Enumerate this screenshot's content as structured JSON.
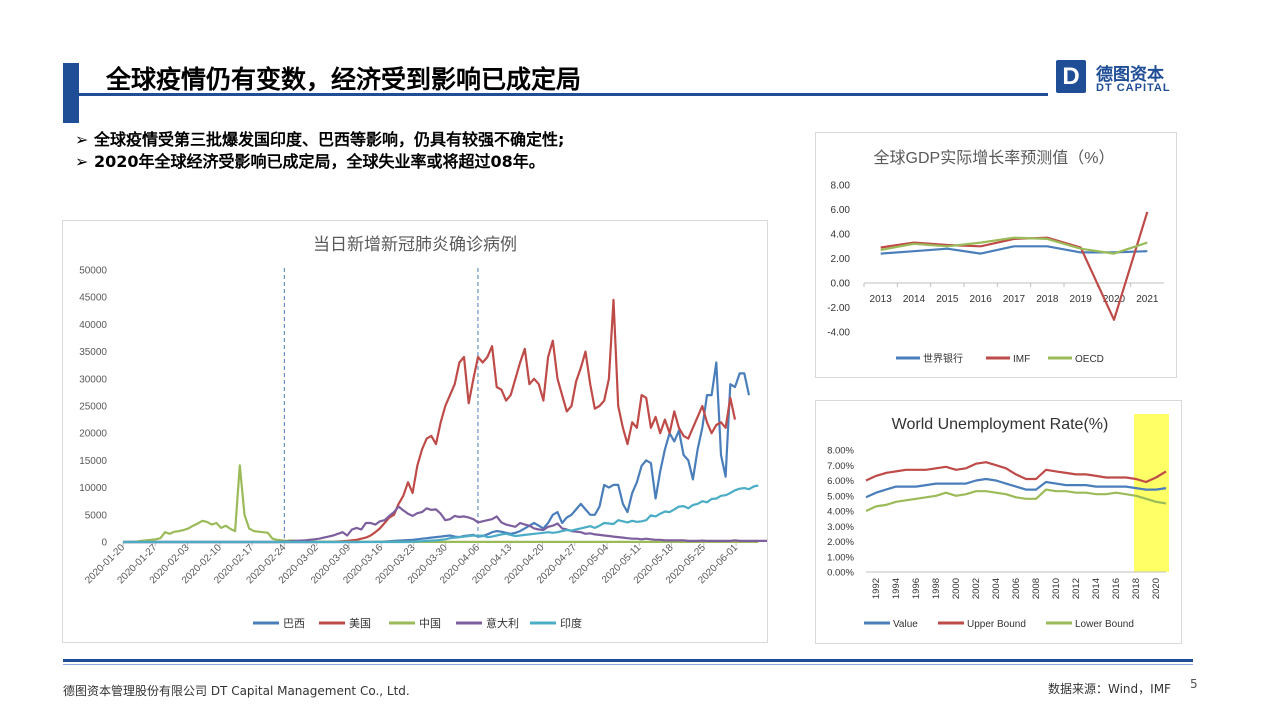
{
  "header": {
    "title": "全球疫情仍有变数，经济受到影响已成定局",
    "logo_mark": "D",
    "logo_cn": "德图资本",
    "logo_en": "DT CAPITAL"
  },
  "bullets": [
    "全球疫情受第三批爆发国印度、巴西等影响，仍具有较强不确定性;",
    "2020年全球经济受影响已成定局，全球失业率或将超过08年。"
  ],
  "bullet_marker": "➢",
  "footer": {
    "company": "德图资本管理股份有限公司  DT Capital Management Co., Ltd.",
    "source": "数据来源：Wind，IMF",
    "page": "5"
  },
  "colors": {
    "brand": "#1F4E96",
    "blue": "#4A7EBB",
    "red": "#BE4B48",
    "green": "#9BBB59",
    "purple": "#7D5F9E",
    "teal": "#4BACC6",
    "highlight": "#FFFF66"
  },
  "chart_data": [
    {
      "type": "line",
      "title": "当日新增新冠肺炎确诊病例",
      "x_labels": [
        "2020-01-20",
        "2020-01-27",
        "2020-02-03",
        "2020-02-10",
        "2020-02-17",
        "2020-02-24",
        "2020-03-02",
        "2020-03-09",
        "2020-03-16",
        "2020-03-23",
        "2020-03-30",
        "2020-04-06",
        "2020-04-13",
        "2020-04-20",
        "2020-04-27",
        "2020-05-04",
        "2020-05-11",
        "2020-05-18",
        "2020-05-25",
        "2020-06-01"
      ],
      "ylim": [
        0,
        50000
      ],
      "yticks": [
        "0",
        "5000",
        "10000",
        "15000",
        "20000",
        "25000",
        "30000",
        "35000",
        "40000",
        "45000",
        "50000"
      ],
      "vlines_week_index": [
        5,
        11
      ],
      "series": [
        {
          "name": "巴西",
          "color": "#4A7EBB",
          "values": [
            0,
            0,
            0,
            0,
            0,
            0,
            0,
            0,
            0,
            0,
            0,
            0,
            0,
            0,
            0,
            0,
            0,
            0,
            0,
            0,
            0,
            0,
            0,
            0,
            0,
            0,
            0,
            0,
            0,
            0,
            0,
            0,
            0,
            0,
            0,
            0,
            0,
            0,
            0,
            0,
            0,
            0,
            0,
            0,
            0,
            0,
            0,
            0,
            0,
            0,
            0,
            10,
            20,
            30,
            50,
            80,
            100,
            150,
            200,
            250,
            300,
            350,
            400,
            500,
            600,
            700,
            800,
            900,
            1000,
            1100,
            1200,
            1000,
            900,
            1100,
            1200,
            1300,
            1000,
            1100,
            1400,
            1800,
            2000,
            1900,
            1700,
            1500,
            1700,
            2000,
            2500,
            3000,
            3500,
            3000,
            2500,
            3500,
            5000,
            5500,
            3500,
            4500,
            5000,
            6000,
            7000,
            6000,
            5000,
            5000,
            6500,
            10500,
            10000,
            10500,
            10500,
            7000,
            5500,
            9000,
            11000,
            14000,
            15000,
            14500,
            8000,
            13000,
            17000,
            20000,
            18500,
            20500,
            16000,
            15000,
            11500,
            17000,
            21000,
            27000,
            27000,
            33000,
            16000,
            12000,
            29000,
            28500,
            31000,
            31000,
            27000
          ]
        },
        {
          "name": "美国",
          "color": "#BE4B48",
          "values": [
            0,
            0,
            0,
            0,
            0,
            0,
            0,
            0,
            0,
            0,
            0,
            0,
            0,
            0,
            0,
            0,
            0,
            0,
            0,
            0,
            0,
            0,
            0,
            0,
            0,
            0,
            0,
            0,
            0,
            0,
            0,
            0,
            0,
            0,
            0,
            0,
            0,
            0,
            0,
            0,
            0,
            0,
            10,
            20,
            30,
            50,
            100,
            150,
            200,
            300,
            400,
            600,
            800,
            1200,
            1800,
            2500,
            3500,
            4500,
            5000,
            7000,
            8500,
            11000,
            9000,
            14000,
            17000,
            19000,
            19500,
            18000,
            22000,
            25000,
            27000,
            29000,
            33000,
            34000,
            25500,
            30000,
            34000,
            33000,
            34000,
            36000,
            28500,
            28000,
            26000,
            27000,
            30000,
            33000,
            35500,
            29000,
            30000,
            29000,
            26000,
            34000,
            37000,
            30000,
            27000,
            24000,
            25000,
            29500,
            32000,
            35000,
            29000,
            24500,
            25000,
            26000,
            30000,
            44500,
            25000,
            21000,
            18000,
            22000,
            21000,
            27000,
            26500,
            21000,
            23000,
            20000,
            22500,
            20000,
            24000,
            21000,
            19500,
            19000,
            21000,
            23000,
            25000,
            22000,
            20000,
            21500,
            22000,
            21000,
            26500,
            22500
          ]
        },
        {
          "name": "中国",
          "color": "#9BBB59",
          "values": [
            0,
            0,
            0,
            100,
            200,
            300,
            400,
            500,
            700,
            1800,
            1500,
            1900,
            2000,
            2200,
            2500,
            3000,
            3400,
            3900,
            3700,
            3200,
            3500,
            2600,
            3000,
            2400,
            2000,
            14100,
            5000,
            2500,
            2000,
            1900,
            1800,
            1700,
            600,
            400,
            300,
            200,
            300,
            200,
            100,
            100,
            100,
            100,
            50,
            50,
            40,
            40,
            30,
            30,
            30,
            30,
            20,
            20,
            20,
            20,
            20,
            20,
            20,
            20,
            20,
            20,
            20,
            20,
            20,
            20,
            20,
            20,
            20,
            20,
            20,
            20,
            20,
            20,
            20,
            20,
            20,
            20,
            20,
            20,
            20,
            20,
            20,
            20,
            20,
            20,
            20,
            20,
            20,
            20,
            20,
            20,
            20,
            20,
            20,
            20,
            20,
            20,
            20,
            20,
            20,
            20,
            20,
            20,
            20,
            20,
            20,
            20,
            20,
            20,
            20,
            20,
            20,
            20,
            20,
            20,
            20,
            20,
            20,
            20,
            20,
            20,
            20,
            20,
            20,
            20,
            20,
            20,
            20,
            20,
            20,
            20,
            20,
            20,
            20,
            20,
            20,
            20,
            20
          ]
        },
        {
          "name": "意大利",
          "color": "#7D5F9E",
          "values": [
            0,
            0,
            0,
            0,
            0,
            0,
            0,
            0,
            0,
            0,
            0,
            0,
            0,
            0,
            0,
            0,
            0,
            0,
            0,
            0,
            0,
            0,
            0,
            0,
            0,
            0,
            0,
            0,
            0,
            0,
            0,
            0,
            0,
            0,
            50,
            100,
            150,
            200,
            250,
            300,
            400,
            500,
            600,
            800,
            1000,
            1200,
            1500,
            1800,
            1200,
            2300,
            2600,
            2300,
            3500,
            3500,
            3200,
            3800,
            4000,
            4800,
            5500,
            6500,
            5800,
            5200,
            4800,
            5300,
            5500,
            6200,
            5900,
            6000,
            5200,
            4000,
            4200,
            4800,
            4600,
            4700,
            4500,
            4200,
            3600,
            3800,
            4000,
            4200,
            4700,
            3600,
            3200,
            3000,
            2800,
            3500,
            3200,
            3000,
            2500,
            2300,
            2200,
            2800,
            3000,
            3400,
            2500,
            2300,
            2000,
            1900,
            1800,
            1500,
            1600,
            1400,
            1300,
            1200,
            1100,
            1000,
            900,
            800,
            700,
            600,
            600,
            500,
            600,
            500,
            400,
            400,
            300,
            300,
            300,
            300,
            300,
            200,
            200,
            200,
            250,
            200,
            200,
            200,
            200,
            200,
            200,
            300,
            200,
            200,
            200,
            200,
            200,
            200,
            200
          ]
        },
        {
          "name": "印度",
          "color": "#4BACC6",
          "values": [
            0,
            0,
            0,
            0,
            0,
            0,
            0,
            0,
            0,
            0,
            0,
            0,
            0,
            0,
            0,
            0,
            0,
            0,
            0,
            0,
            0,
            0,
            0,
            0,
            0,
            0,
            0,
            0,
            0,
            0,
            0,
            0,
            0,
            0,
            0,
            0,
            0,
            0,
            0,
            0,
            0,
            0,
            0,
            0,
            0,
            0,
            0,
            0,
            0,
            0,
            0,
            0,
            0,
            0,
            0,
            0,
            0,
            0,
            0,
            0,
            0,
            0,
            50,
            100,
            150,
            200,
            250,
            300,
            400,
            500,
            700,
            800,
            900,
            1000,
            1100,
            1200,
            1100,
            1200,
            900,
            1000,
            1200,
            1400,
            1500,
            1300,
            1100,
            1200,
            1300,
            1400,
            1500,
            1600,
            1700,
            1800,
            1700,
            1800,
            2000,
            2200,
            2100,
            2300,
            2500,
            2700,
            2900,
            2600,
            3000,
            3500,
            3400,
            3300,
            4000,
            3800,
            3600,
            3900,
            3700,
            3800,
            4000,
            4900,
            4700,
            5200,
            5600,
            5500,
            6000,
            6500,
            6600,
            6200,
            6800,
            7000,
            7500,
            7300,
            7900,
            8000,
            8500,
            8600,
            9000,
            9500,
            9800,
            9900,
            9700,
            10200,
            10400
          ]
        }
      ]
    },
    {
      "type": "line",
      "title": "全球GDP实际增长率预测值（%）",
      "categories": [
        "2013",
        "2014",
        "2015",
        "2016",
        "2017",
        "2018",
        "2019",
        "2020",
        "2021"
      ],
      "ylim": [
        -4,
        8
      ],
      "yticks": [
        "-4.00",
        "-2.00",
        "0.00",
        "2.00",
        "4.00",
        "6.00",
        "8.00"
      ],
      "series": [
        {
          "name": "世界银行",
          "color": "#4A7EBB",
          "values": [
            2.4,
            2.6,
            2.8,
            2.4,
            3.0,
            3.0,
            2.5,
            2.5,
            2.6
          ]
        },
        {
          "name": "IMF",
          "color": "#BE4B48",
          "values": [
            2.9,
            3.3,
            3.1,
            3.0,
            3.6,
            3.7,
            2.9,
            -3.0,
            5.8
          ]
        },
        {
          "name": "OECD",
          "color": "#9BBB59",
          "values": [
            2.7,
            3.2,
            3.0,
            3.3,
            3.7,
            3.6,
            2.8,
            2.4,
            3.3
          ]
        }
      ]
    },
    {
      "type": "line",
      "title": "World Unemployment Rate(%)",
      "x_labels": [
        "1992",
        "1994",
        "1996",
        "1998",
        "2000",
        "2002",
        "2004",
        "2006",
        "2008",
        "2010",
        "2012",
        "2014",
        "2016",
        "2018",
        "2020"
      ],
      "years": [
        1991,
        1992,
        1993,
        1994,
        1995,
        1996,
        1997,
        1998,
        1999,
        2000,
        2001,
        2002,
        2003,
        2004,
        2005,
        2006,
        2007,
        2008,
        2009,
        2010,
        2011,
        2012,
        2013,
        2014,
        2015,
        2016,
        2017,
        2018,
        2019,
        2020,
        2021
      ],
      "ylim": [
        0,
        0.08
      ],
      "yticks": [
        "0.00%",
        "1.00%",
        "2.00%",
        "3.00%",
        "4.00%",
        "5.00%",
        "6.00%",
        "7.00%",
        "8.00%"
      ],
      "highlight_range": [
        2018,
        2021
      ],
      "series": [
        {
          "name": "Value",
          "color": "#4A7EBB",
          "values": [
            4.9,
            5.2,
            5.4,
            5.6,
            5.6,
            5.6,
            5.7,
            5.8,
            5.8,
            5.8,
            5.8,
            6.0,
            6.1,
            6.0,
            5.8,
            5.6,
            5.4,
            5.4,
            5.9,
            5.8,
            5.7,
            5.7,
            5.7,
            5.6,
            5.6,
            5.6,
            5.6,
            5.5,
            5.4,
            5.4,
            5.5
          ]
        },
        {
          "name": "Upper Bound",
          "color": "#BE4B48",
          "values": [
            6.0,
            6.3,
            6.5,
            6.6,
            6.7,
            6.7,
            6.7,
            6.8,
            6.9,
            6.7,
            6.8,
            7.1,
            7.2,
            7.0,
            6.8,
            6.4,
            6.1,
            6.1,
            6.7,
            6.6,
            6.5,
            6.4,
            6.4,
            6.3,
            6.2,
            6.2,
            6.2,
            6.1,
            5.9,
            6.2,
            6.6
          ]
        },
        {
          "name": "Lower Bound",
          "color": "#9BBB59",
          "values": [
            4.0,
            4.3,
            4.4,
            4.6,
            4.7,
            4.8,
            4.9,
            5.0,
            5.2,
            5.0,
            5.1,
            5.3,
            5.3,
            5.2,
            5.1,
            4.9,
            4.8,
            4.8,
            5.4,
            5.3,
            5.3,
            5.2,
            5.2,
            5.1,
            5.1,
            5.2,
            5.1,
            5.0,
            4.8,
            4.6,
            4.5
          ]
        }
      ]
    }
  ]
}
